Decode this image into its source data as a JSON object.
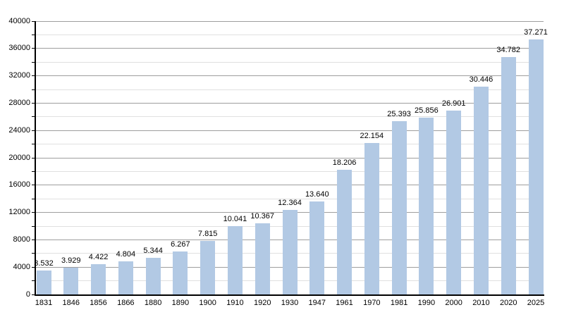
{
  "figure": {
    "background": "#ffffff"
  },
  "chart_data": {
    "type": "bar",
    "title": "",
    "xlabel": "",
    "ylabel": "",
    "categories": [
      "1831",
      "1846",
      "1856",
      "1866",
      "1880",
      "1890",
      "1900",
      "1910",
      "1920",
      "1930",
      "1947",
      "1961",
      "1970",
      "1981",
      "1990",
      "2000",
      "2010",
      "2020",
      "2025"
    ],
    "values": [
      3532,
      3929,
      4422,
      4804,
      5344,
      6267,
      7815,
      10041,
      10367,
      12364,
      13640,
      18206,
      22154,
      25393,
      25856,
      26901,
      30446,
      34782,
      37271
    ],
    "value_labels": [
      "3.532",
      "3.929",
      "4.422",
      "4.804",
      "5.344",
      "6.267",
      "7.815",
      "10.041",
      "10.367",
      "12.364",
      "13.640",
      "18.206",
      "22.154",
      "25.393",
      "25.856",
      "26.901",
      "30.446",
      "34.782",
      "37.271"
    ],
    "ylim": [
      0,
      40000
    ],
    "y_major_step": 4000,
    "y_minor_step": 2000,
    "y_tick_labels": [
      "0",
      "4000",
      "8000",
      "12000",
      "16000",
      "20000",
      "24000",
      "28000",
      "32000",
      "36000",
      "40000"
    ],
    "grid": true,
    "legend": "none",
    "colors": {
      "bar": "#b2c9e4",
      "major_grid": "#9e9e9e",
      "minor_grid": "#e0e0e0",
      "axis": "#000000",
      "text": "#000000"
    }
  }
}
